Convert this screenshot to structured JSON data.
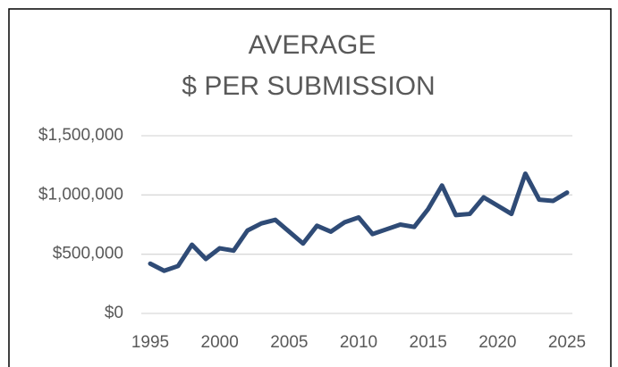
{
  "chart_data": {
    "type": "line",
    "title": [
      "AVERAGE",
      "$ PER SUBMISSION"
    ],
    "x": [
      1995,
      1996,
      1997,
      1998,
      1999,
      2000,
      2001,
      2002,
      2003,
      2004,
      2005,
      2006,
      2007,
      2008,
      2009,
      2010,
      2011,
      2012,
      2013,
      2014,
      2015,
      2016,
      2017,
      2018,
      2019,
      2020,
      2021,
      2022,
      2023,
      2024,
      2025
    ],
    "series": [
      {
        "name": "Average $ per submission",
        "color": "#2f4b76",
        "values": [
          420000,
          360000,
          400000,
          580000,
          460000,
          550000,
          530000,
          700000,
          760000,
          790000,
          690000,
          590000,
          740000,
          690000,
          770000,
          810000,
          670000,
          710000,
          750000,
          730000,
          880000,
          1080000,
          830000,
          840000,
          980000,
          910000,
          840000,
          1180000,
          960000,
          950000,
          1020000
        ]
      }
    ],
    "xlim": [
      1995,
      2025
    ],
    "xticks": [
      1995,
      2000,
      2005,
      2010,
      2015,
      2020,
      2025
    ],
    "ylim": [
      0,
      1500000
    ],
    "yticks": [
      {
        "value": 0,
        "label": "$0"
      },
      {
        "value": 500000,
        "label": "$500,000"
      },
      {
        "value": 1000000,
        "label": "$1,000,000"
      },
      {
        "value": 1500000,
        "label": "$1,500,000"
      }
    ],
    "grid": true
  }
}
